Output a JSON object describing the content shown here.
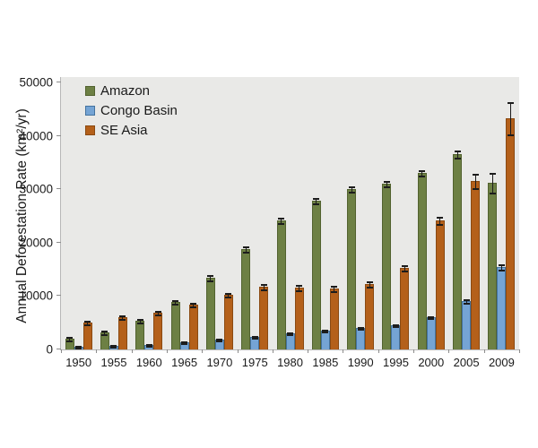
{
  "chart_data": {
    "type": "bar",
    "title": "",
    "xlabel": "",
    "ylabel": "Annual Deforestation Rate (km²/yr)",
    "ylim": [
      0,
      50000
    ],
    "ytick_step": 10000,
    "ytick_labels": [
      "0",
      "10000",
      "20000",
      "30000",
      "40000",
      "50000"
    ],
    "grid": false,
    "legend_position": "top-left-inside",
    "plot_bg": "#e9e9e7",
    "axis_color": "#b8b8b8",
    "error_bar_color": "#1c1c1c",
    "categories": [
      "1950",
      "1955",
      "1960",
      "1965",
      "1970",
      "1975",
      "1980",
      "1985",
      "1990",
      "1995",
      "2000",
      "2005",
      "2009"
    ],
    "series": [
      {
        "name": "Amazon",
        "color": "#6d8044",
        "border_color": "#52622f",
        "values": [
          2000,
          3200,
          5400,
          8900,
          13400,
          18800,
          24100,
          27900,
          30000,
          31000,
          33100,
          36500,
          31200
        ],
        "errors": [
          300,
          300,
          300,
          400,
          450,
          450,
          500,
          500,
          500,
          500,
          550,
          600,
          1800
        ]
      },
      {
        "name": "Congo Basin",
        "color": "#75a4d4",
        "border_color": "#44739f",
        "values": [
          500,
          700,
          900,
          1300,
          1800,
          2300,
          3000,
          3500,
          4000,
          4500,
          6000,
          9100,
          15400
        ],
        "errors": [
          150,
          150,
          150,
          150,
          150,
          200,
          200,
          200,
          250,
          250,
          250,
          350,
          500
        ]
      },
      {
        "name": "SE Asia",
        "color": "#b4601a",
        "border_color": "#8a4a12",
        "values": [
          5000,
          6000,
          6800,
          8400,
          10200,
          11700,
          11500,
          11400,
          12200,
          15200,
          24100,
          31600,
          43300
        ],
        "errors": [
          400,
          350,
          350,
          400,
          400,
          450,
          500,
          450,
          450,
          500,
          600,
          1300,
          3100
        ]
      }
    ]
  }
}
